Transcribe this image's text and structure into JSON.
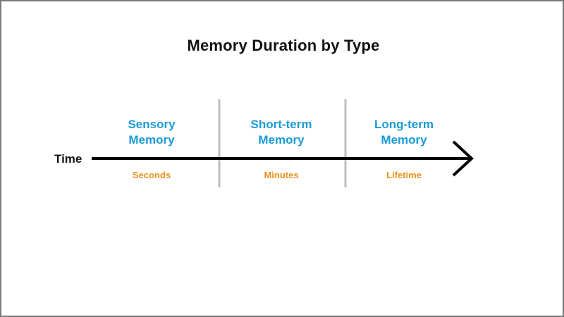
{
  "title": "Memory Duration by Type",
  "axis_label": "Time",
  "colors": {
    "type_text": "#1a9ad6",
    "duration_text": "#e8921a",
    "divider": "#bdbdbd",
    "axis": "#000000"
  },
  "segments": [
    {
      "type_line1": "Sensory",
      "type_line2": "Memory",
      "duration": "Seconds"
    },
    {
      "type_line1": "Short-term",
      "type_line2": "Memory",
      "duration": "Minutes"
    },
    {
      "type_line1": "Long-term",
      "type_line2": "Memory",
      "duration": "Lifetime"
    }
  ]
}
